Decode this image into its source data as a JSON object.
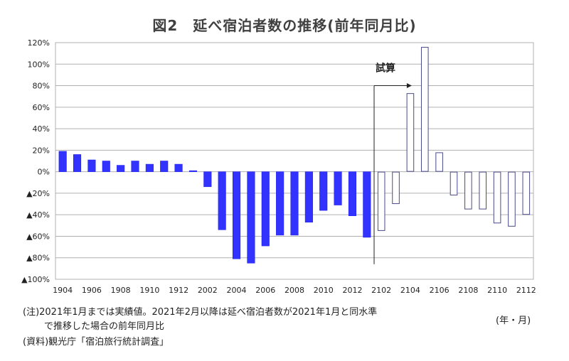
{
  "title": "図2　延べ宿泊者数の推移(前年同月比)",
  "notes": {
    "line1": "(注)2021年1月までは実績値。2021年2月以降は延べ宿泊者数が2021年1月と同水準",
    "line2": "で推移した場合の前年同月比",
    "source": "(資料)観光庁「宿泊旅行統計調査」"
  },
  "unit_label": "(年・月)",
  "colors": {
    "actual_fill": "#3333ff",
    "actual_stroke": "#1a1aee",
    "estimate_stroke": "#4a4a8a",
    "grid": "#b0b0b0"
  },
  "chart_data": {
    "type": "bar",
    "title": "図2　延べ宿泊者数の推移(前年同月比)",
    "xlabel": "(年・月)",
    "ylabel": "",
    "ylim": [
      -100,
      120
    ],
    "y_ticks": [
      120,
      100,
      80,
      60,
      40,
      20,
      0,
      -20,
      -40,
      -60,
      -80,
      -100
    ],
    "y_tick_labels": [
      "120%",
      "100%",
      "80%",
      "60%",
      "40%",
      "20%",
      "0%",
      "▲20%",
      "▲40%",
      "▲60%",
      "▲80%",
      "▲100%"
    ],
    "grid": true,
    "legend": "none",
    "annotation": {
      "text": "試算",
      "from_category": "2102"
    },
    "categories": [
      "1904",
      "1905",
      "1906",
      "1907",
      "1908",
      "1909",
      "1910",
      "1911",
      "1912",
      "2001",
      "2002",
      "2003",
      "2004",
      "2005",
      "2006",
      "2007",
      "2008",
      "2009",
      "2010",
      "2011",
      "2012",
      "2101",
      "2102",
      "2103",
      "2104",
      "2105",
      "2106",
      "2107",
      "2108",
      "2109",
      "2110",
      "2111",
      "2112"
    ],
    "x_tick_labels": [
      "1904",
      "1906",
      "1908",
      "1910",
      "1912",
      "2002",
      "2004",
      "2006",
      "2008",
      "2010",
      "2012",
      "2102",
      "2104",
      "2106",
      "2108",
      "2110",
      "2112"
    ],
    "values": [
      19,
      16,
      11,
      10,
      6,
      10,
      7,
      10,
      7,
      1,
      -14,
      -54,
      -81,
      -85,
      -69,
      -59,
      -59,
      -47,
      -36,
      -31,
      -41,
      -61,
      -55,
      -30,
      73,
      116,
      18,
      -22,
      -35,
      -35,
      -48,
      -51,
      -40
    ],
    "series_split": {
      "actual_count": 22,
      "actual": "実績値",
      "estimate": "試算"
    }
  }
}
